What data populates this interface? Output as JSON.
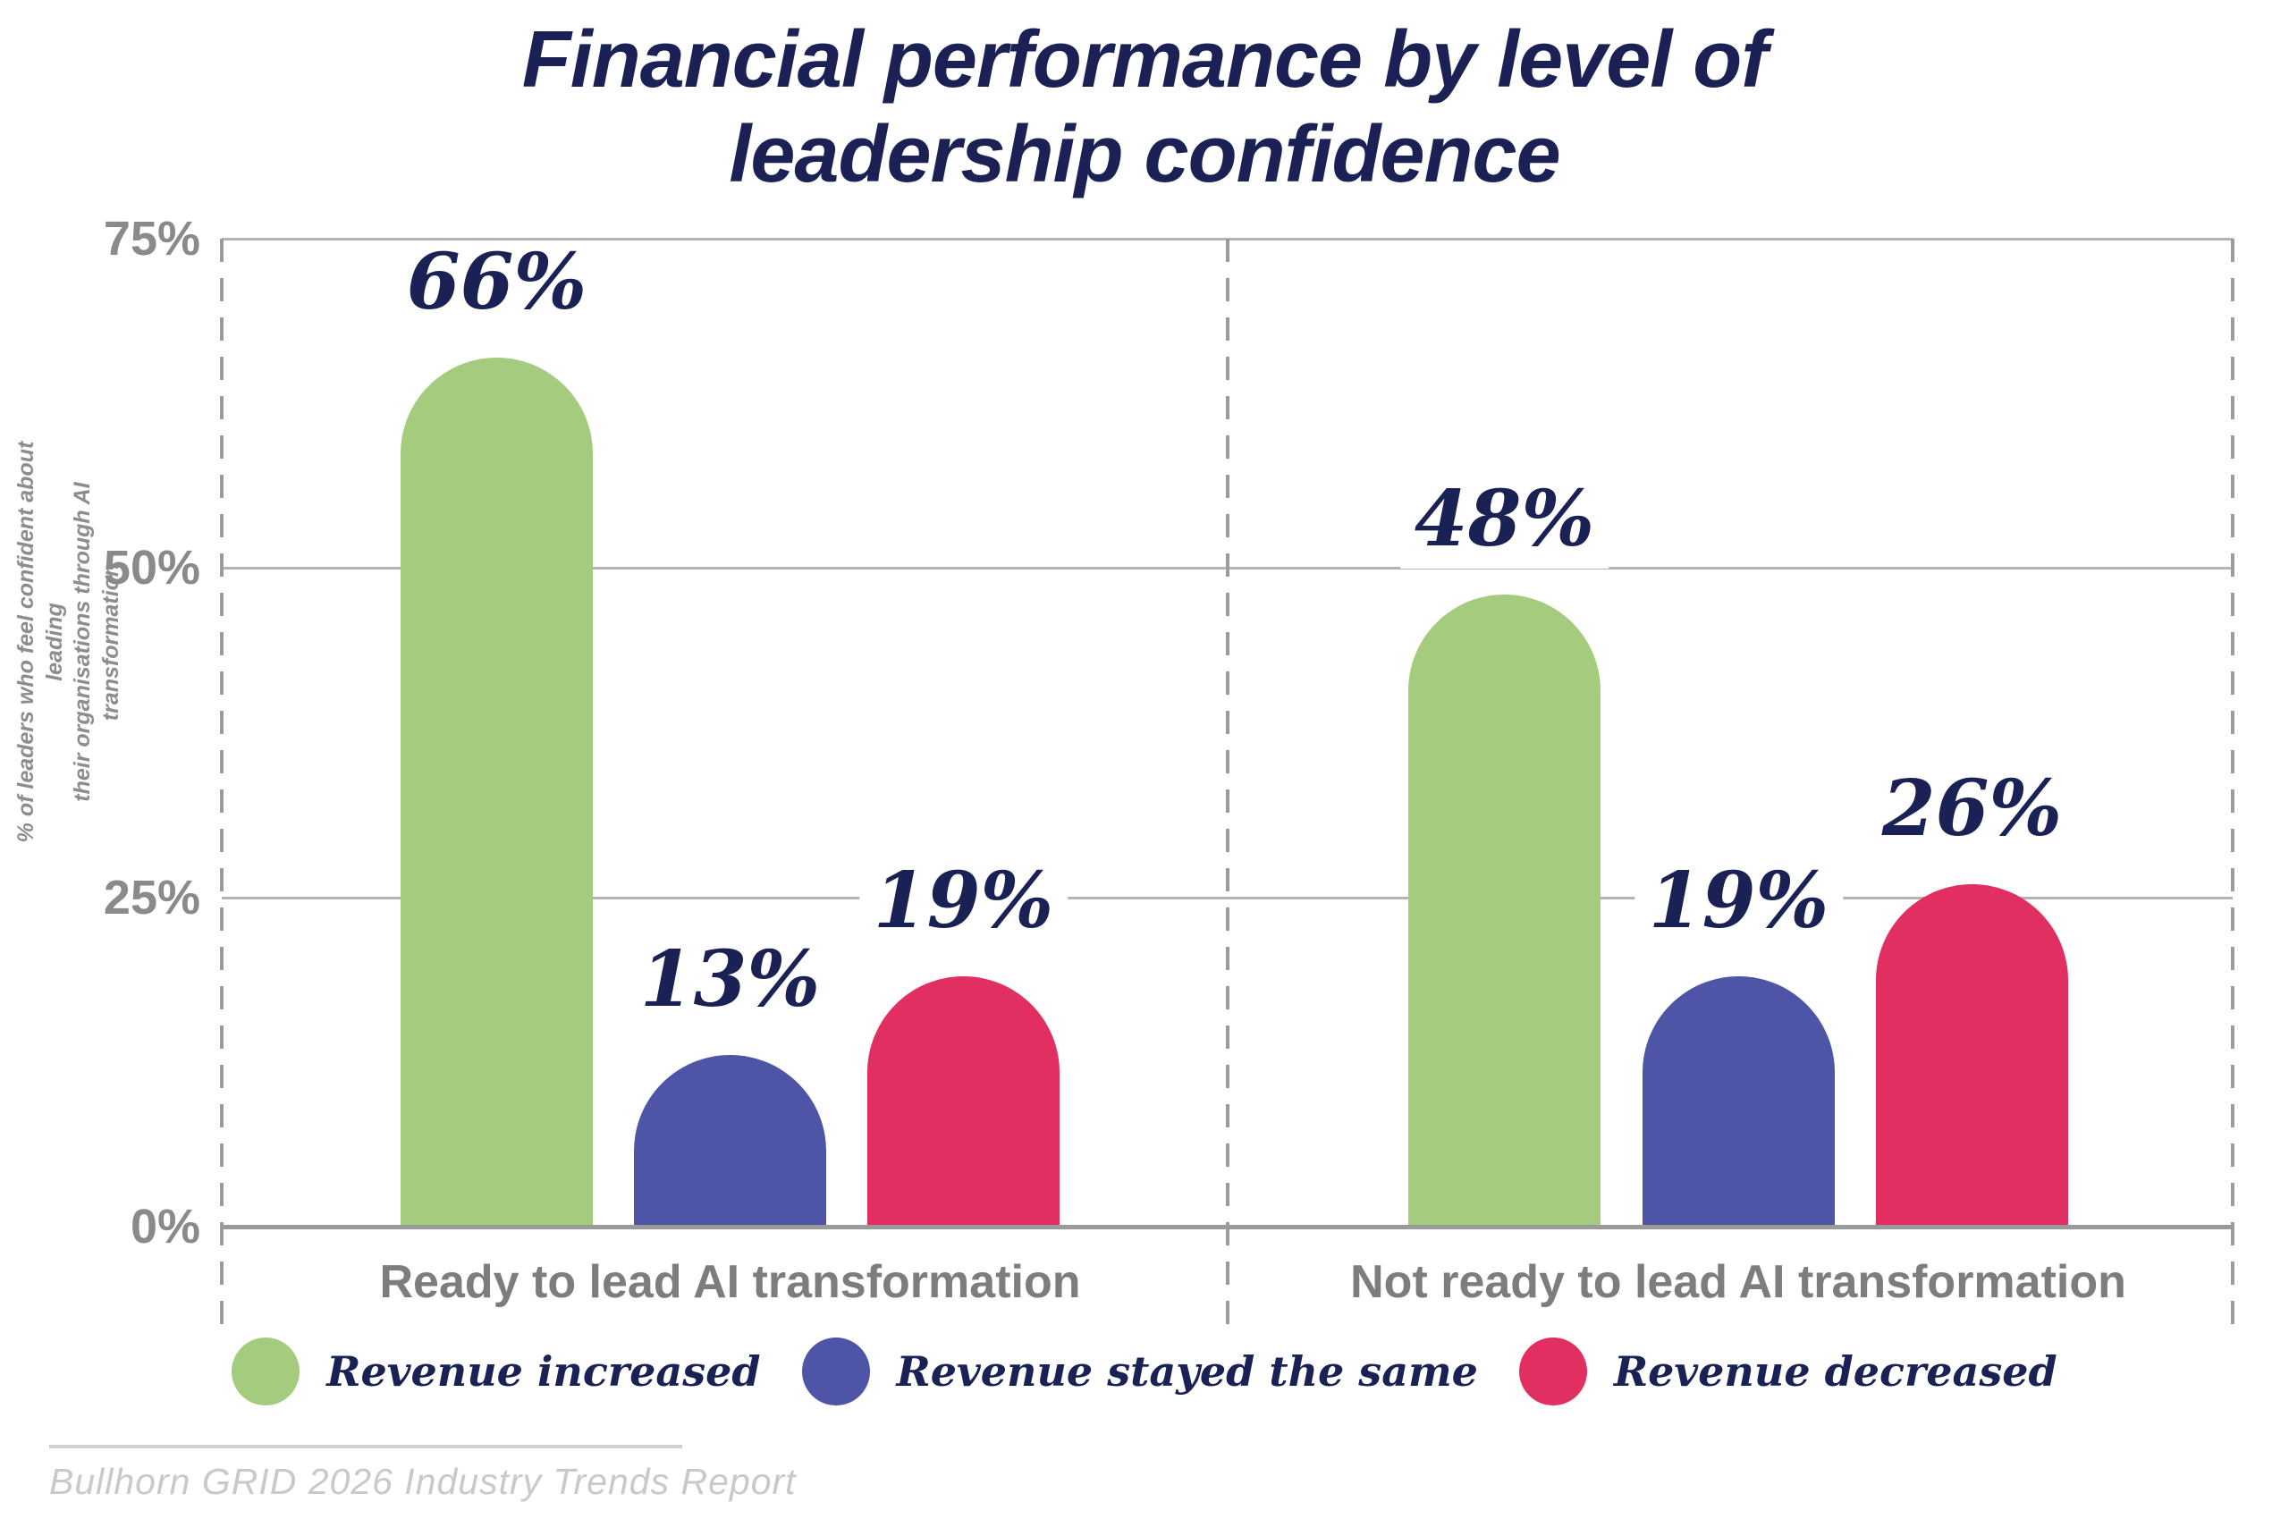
{
  "title": {
    "line1": "Financial performance by level of",
    "line2": "leadership confidence"
  },
  "y_axis": {
    "label_line1": "% of leaders who feel confident about leading",
    "label_line2": "their organisations through AI transformation",
    "tick_labels": [
      "75%",
      "50%",
      "25%",
      "0%"
    ]
  },
  "source": "Bullhorn GRID 2026 Industry Trends Report",
  "colors": {
    "title_navy": "#1b2155",
    "value_label_navy": "#1a2154",
    "green": "#a5cb7e",
    "blue": "#4e55a7",
    "pink": "#e22f62",
    "tick_gray": "#8a8a8a",
    "group_label_gray": "#7d7d7d",
    "ylabel_gray": "#8d8d8d",
    "gridline_gray": "#b4b4b4",
    "axis_gray": "#9a9a9a",
    "dash_gray": "#9c9c9c",
    "footer_gray": "#c9c9c9",
    "footer_line_gray": "#d0d0d0"
  },
  "chart_data": {
    "type": "bar",
    "title": "Financial performance by level of leadership confidence",
    "ylabel": "% of leaders who feel confident about leading their organisations through AI transformation",
    "ylim": [
      0,
      75
    ],
    "yticks": [
      75,
      50,
      25,
      0
    ],
    "grid": "horizontal",
    "legend_position": "bottom",
    "value_suffix": "%",
    "categories": [
      "Ready to lead AI transformation",
      "Not ready to lead AI transformation"
    ],
    "series": [
      {
        "name": "Revenue increased",
        "color": "#a5cb7e",
        "values": [
          66,
          48
        ]
      },
      {
        "name": "Revenue stayed the same",
        "color": "#4e55a7",
        "values": [
          13,
          19
        ]
      },
      {
        "name": "Revenue decreased",
        "color": "#e22f62",
        "values": [
          19,
          26
        ]
      }
    ]
  }
}
